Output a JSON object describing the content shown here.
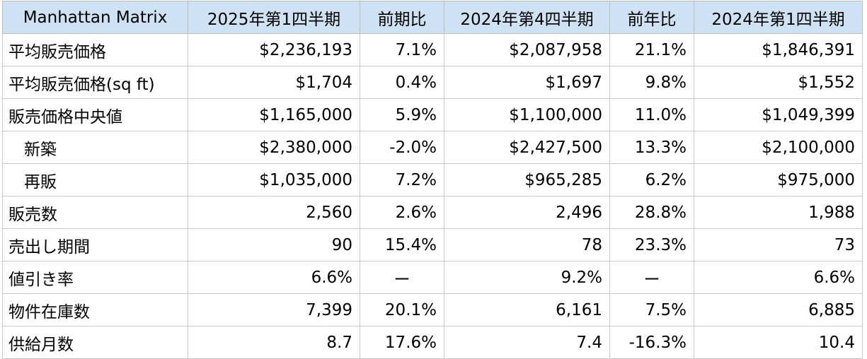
{
  "table": {
    "headers": [
      "Manhattan Matrix",
      "2025年第1四半期",
      "前期比",
      "2024年第4四半期",
      "前年比",
      "2024年第1四半期"
    ],
    "rows": [
      {
        "label": "平均販売価格",
        "indent": false,
        "cells": [
          "$2,236,193",
          "7.1%",
          "$2,087,958",
          "21.1%",
          "$1,846,391"
        ]
      },
      {
        "label": "平均販売価格(sq ft)",
        "indent": false,
        "cells": [
          "$1,704",
          "0.4%",
          "$1,697",
          "9.8%",
          "$1,552"
        ]
      },
      {
        "label": "販売価格中央値",
        "indent": false,
        "cells": [
          "$1,165,000",
          "5.9%",
          "$1,100,000",
          "11.0%",
          "$1,049,399"
        ]
      },
      {
        "label": "新築",
        "indent": true,
        "cells": [
          "$2,380,000",
          "-2.0%",
          "$2,427,500",
          "13.3%",
          "$2,100,000"
        ]
      },
      {
        "label": "再販",
        "indent": true,
        "cells": [
          "$1,035,000",
          "7.2%",
          "$965,285",
          "6.2%",
          "$975,000"
        ]
      },
      {
        "label": "販売数",
        "indent": false,
        "cells": [
          "2,560",
          "2.6%",
          "2,496",
          "28.8%",
          "1,988"
        ]
      },
      {
        "label": "売出し期間",
        "indent": false,
        "cells": [
          "90",
          "15.4%",
          "78",
          "23.3%",
          "73"
        ]
      },
      {
        "label": "値引き率",
        "indent": false,
        "cells": [
          "6.6%",
          "ー",
          "9.2%",
          "ー",
          "6.6%"
        ]
      },
      {
        "label": "物件在庫数",
        "indent": false,
        "cells": [
          "7,399",
          "20.1%",
          "6,161",
          "7.5%",
          "6,885"
        ]
      },
      {
        "label": "供給月数",
        "indent": false,
        "cells": [
          "8.7",
          "17.6%",
          "7.4",
          "-16.3%",
          "10.4"
        ]
      }
    ]
  },
  "colors": {
    "header_background": "#cfe2f3",
    "grid_line": "#c8c8c8",
    "text": "#000000"
  }
}
